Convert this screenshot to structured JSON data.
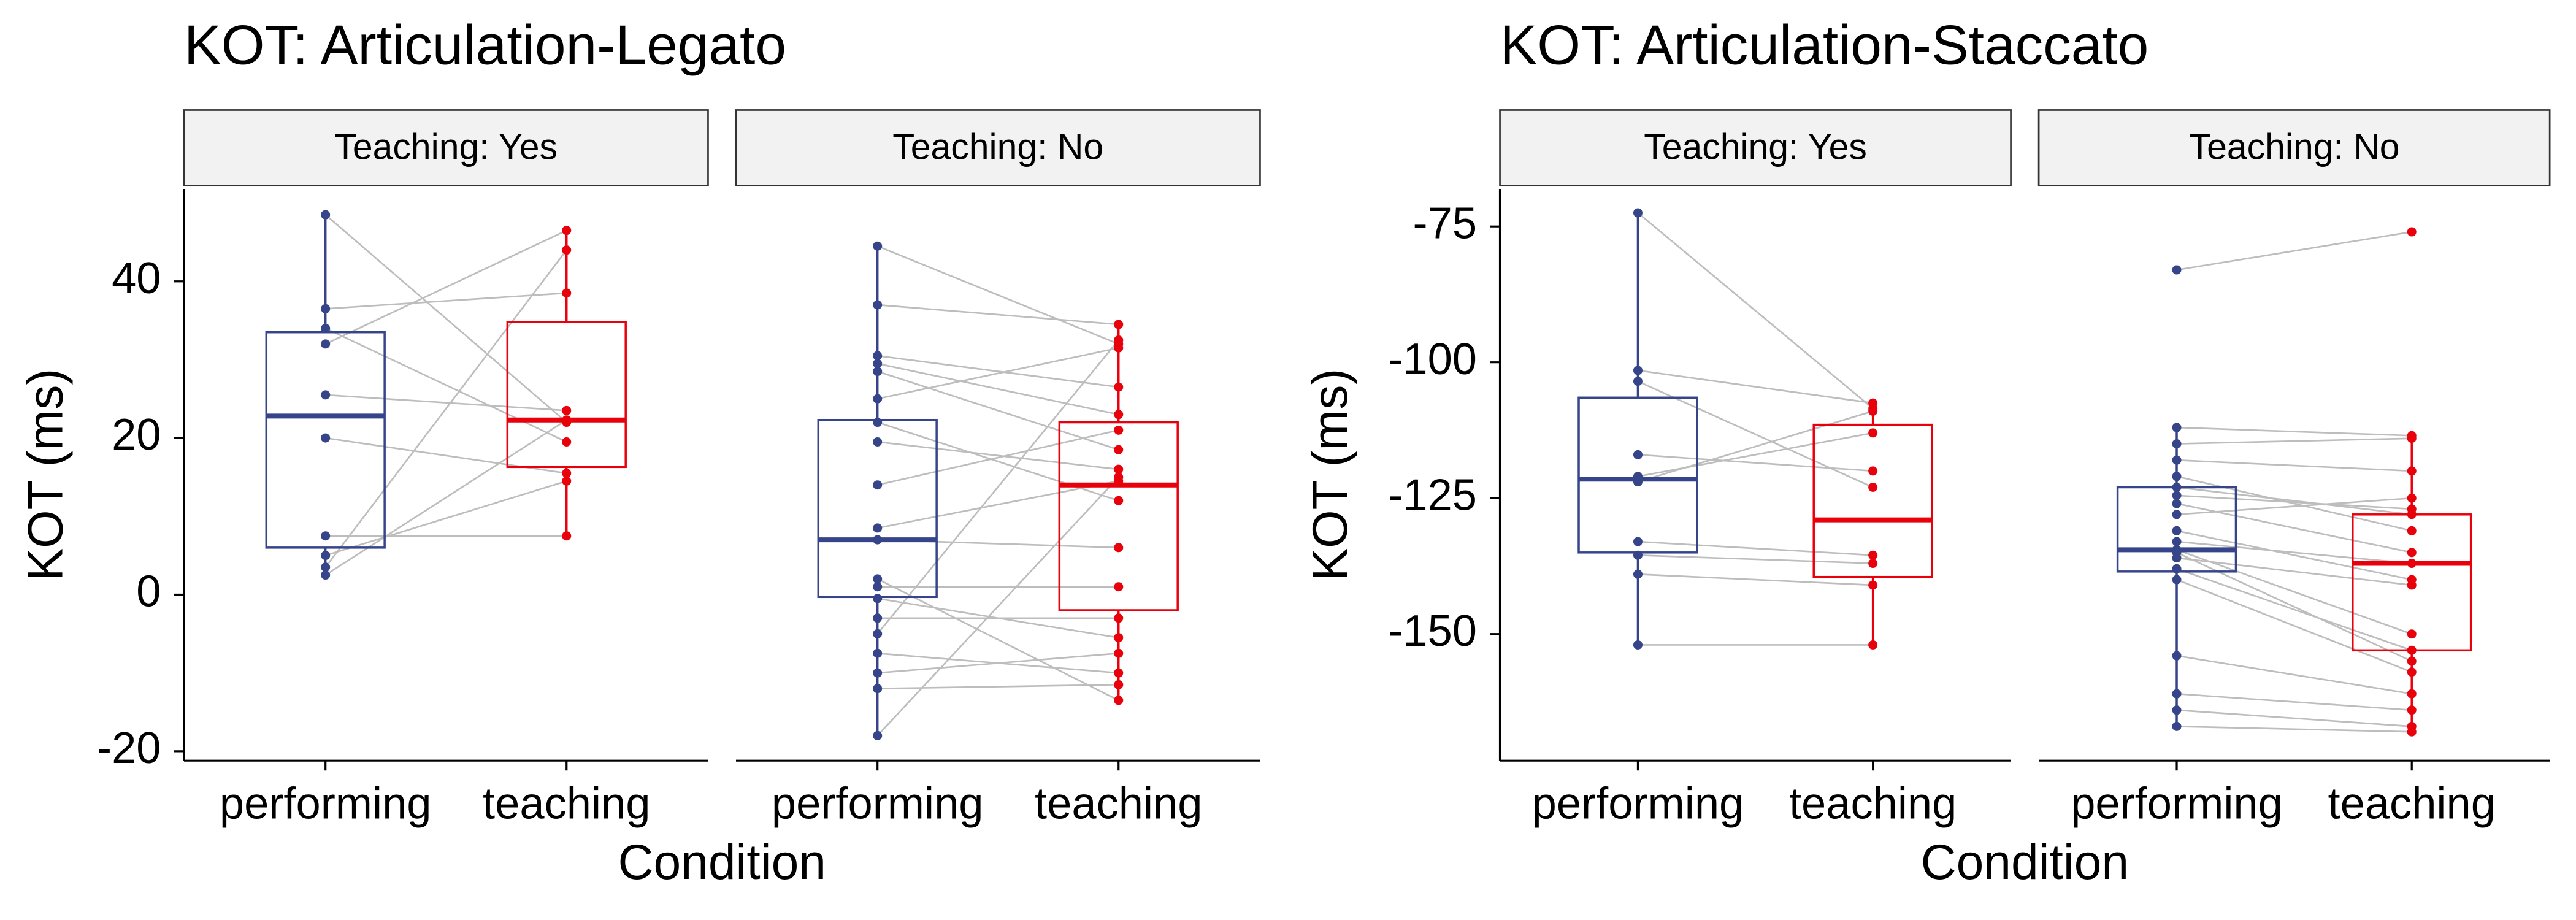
{
  "chart_data": [
    {
      "type": "boxplot",
      "title": "KOT: Articulation-Legato",
      "y_label": "KOT (ms)",
      "x_label": "Condition",
      "categories": [
        "performing",
        "teaching"
      ],
      "ylim": [
        -21.2,
        51.8
      ],
      "yticks": [
        -20,
        0,
        20,
        40
      ],
      "facets": [
        {
          "label": "Teaching: Yes",
          "series": [
            {
              "name": "performing",
              "color": "#36448a",
              "values": [
                48.5,
                36.5,
                34,
                32,
                25.5,
                20,
                7.5,
                5,
                3.5,
                2.5
              ],
              "box": {
                "lower": 2.5,
                "q1": 6,
                "median": 22.8,
                "q3": 33.5,
                "upper": 48.5
              }
            },
            {
              "name": "teaching",
              "color": "#e8000b",
              "values": [
                22,
                38.5,
                19.5,
                46.5,
                23.5,
                15.5,
                7.5,
                14.5,
                44,
                22.3
              ],
              "box": {
                "lower": 7.5,
                "q1": 16.3,
                "median": 22.3,
                "q3": 34.8,
                "upper": 46.5
              }
            }
          ]
        },
        {
          "label": "Teaching: No",
          "series": [
            {
              "name": "performing",
              "color": "#36448a",
              "values": [
                44.5,
                37,
                30.5,
                29.5,
                28.5,
                25,
                19.5,
                14,
                8.5,
                7,
                2,
                1,
                -0.5,
                -3,
                -5,
                -7.5,
                -10,
                -12,
                -18,
                22
              ],
              "box": {
                "lower": -18,
                "q1": -0.3,
                "median": 7,
                "q3": 22.3,
                "upper": 44.5
              }
            },
            {
              "name": "teaching",
              "color": "#e8000b",
              "values": [
                32,
                34.5,
                26.5,
                23,
                18.5,
                31.5,
                16,
                21,
                14.5,
                6,
                -13.5,
                1,
                -5.5,
                -3,
                32.5,
                -10,
                -7.5,
                -11.5,
                15,
                12
              ],
              "box": {
                "lower": -13.5,
                "q1": -2,
                "median": 14,
                "q3": 22,
                "upper": 34.5
              }
            }
          ]
        }
      ]
    },
    {
      "type": "boxplot",
      "title": "KOT: Articulation-Staccato",
      "y_label": "KOT (ms)",
      "x_label": "Condition",
      "categories": [
        "performing",
        "teaching"
      ],
      "ylim": [
        -173.3,
        -68.1
      ],
      "yticks": [
        -150,
        -125,
        -100,
        -75
      ],
      "facets": [
        {
          "label": "Teaching: Yes",
          "series": [
            {
              "name": "performing",
              "color": "#36448a",
              "values": [
                -72.5,
                -101.5,
                -103.5,
                -117,
                -121,
                -122,
                -133,
                -135.5,
                -139,
                -152
              ],
              "box": {
                "lower": -152,
                "q1": -135,
                "median": -121.5,
                "q3": -106.5,
                "upper": -72.5
              }
            },
            {
              "name": "teaching",
              "color": "#e8000b",
              "values": [
                -108.5,
                -107.5,
                -123,
                -120,
                -113,
                -109,
                -135.5,
                -137,
                -141,
                -152
              ],
              "box": {
                "lower": -152,
                "q1": -139.5,
                "median": -129,
                "q3": -111.5,
                "upper": -107.5
              }
            }
          ]
        },
        {
          "label": "Teaching: No",
          "series": [
            {
              "name": "performing",
              "color": "#36448a",
              "values": [
                -83,
                -112,
                -115,
                -118,
                -121,
                -123,
                -124.5,
                -126,
                -128,
                -131,
                -133,
                -134.5,
                -136,
                -138,
                -140,
                -154,
                -161,
                -164,
                -167,
                -135
              ],
              "box": {
                "lower": -167,
                "q1": -138.5,
                "median": -134.5,
                "q3": -123,
                "upper": -112
              }
            },
            {
              "name": "teaching",
              "color": "#e8000b",
              "values": [
                -76,
                -113.5,
                -114,
                -120,
                -131,
                -128,
                -127,
                -135,
                -125,
                -140,
                -137,
                -150,
                -141,
                -153,
                -157,
                -161,
                -164,
                -167,
                -168,
                -155
              ],
              "box": {
                "lower": -168,
                "q1": -153,
                "median": -137,
                "q3": -128,
                "upper": -113
              }
            }
          ]
        }
      ]
    }
  ]
}
